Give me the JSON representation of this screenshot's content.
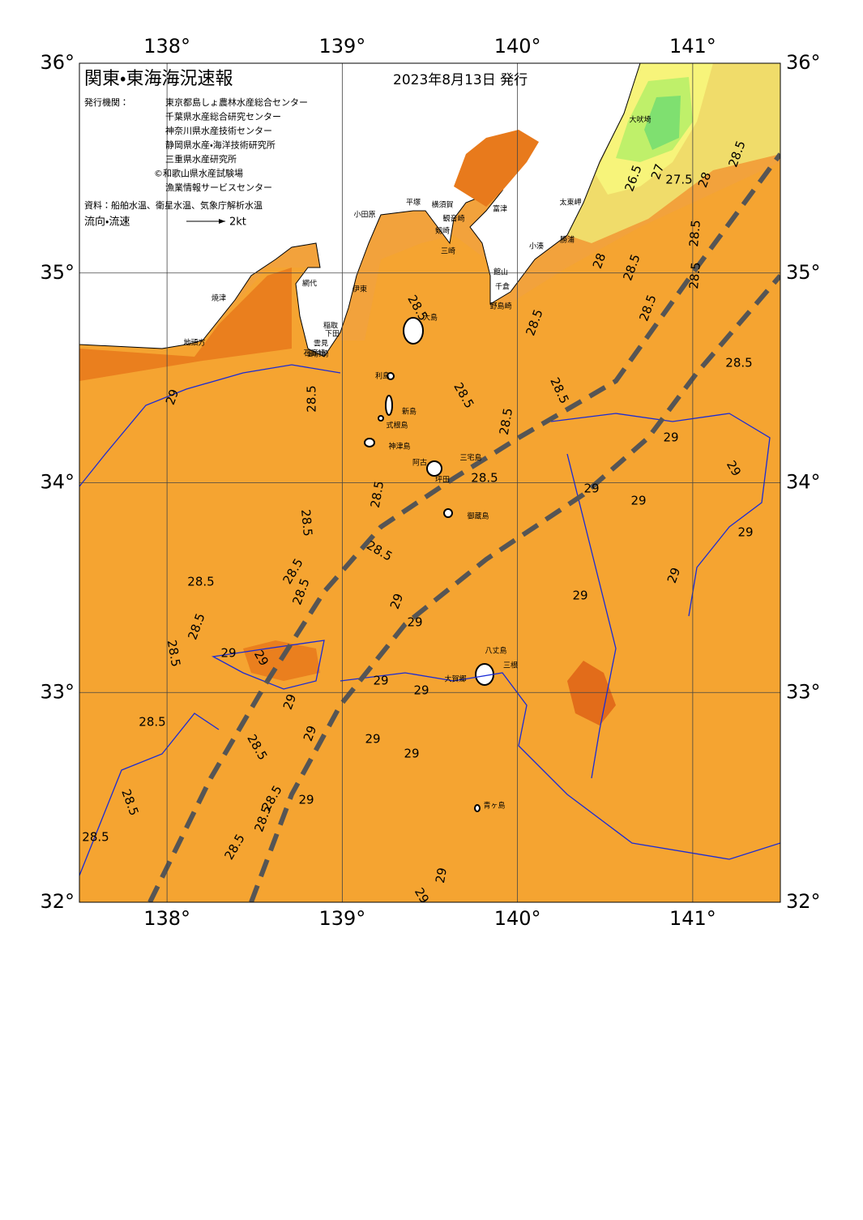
{
  "map": {
    "title": "関東・東海海況速報",
    "issued": "2023年8月13日 発行",
    "publisher_label": "発行機関：",
    "publishers": [
      "東京都島しょ農林水産総合センター",
      "千葉県水産総合研究センター",
      "神奈川県水産技術センター",
      "静岡県水産・海洋技術研究所",
      "三重県水産研究所",
      "©和歌山県水産試験場",
      "漁業情報サービスセンター"
    ],
    "source": "資料：船舶水温、衛星水温、気象庁解析水温",
    "legend": {
      "label": "流向・流速",
      "scale": "2kt"
    },
    "lon_range": [
      137.5,
      141.5
    ],
    "lat_range": [
      32,
      36
    ],
    "lon_ticks": [
      {
        "value": 138,
        "label": "138°"
      },
      {
        "value": 139,
        "label": "139°"
      },
      {
        "value": 140,
        "label": "140°"
      },
      {
        "value": 141,
        "label": "141°"
      }
    ],
    "lat_ticks": [
      {
        "value": 32,
        "label": "32°"
      },
      {
        "value": 33,
        "label": "33°"
      },
      {
        "value": 34,
        "label": "34°"
      },
      {
        "value": 35,
        "label": "35°"
      },
      {
        "value": 36,
        "label": "36°"
      }
    ],
    "places": [
      "大吠埼",
      "太東岬",
      "勝浦",
      "小湊",
      "館山",
      "千倉",
      "野島崎",
      "富津",
      "横須賀",
      "観音崎",
      "剱崎",
      "三崎",
      "平塚",
      "小田原",
      "伊東",
      "網代",
      "稲取",
      "下田",
      "石廊崎",
      "雲見",
      "御前崎",
      "焼津",
      "地頭方",
      "大島",
      "利島",
      "新島",
      "式根島",
      "神津島",
      "三宅島",
      "阿古",
      "坪田",
      "御蔵島",
      "八丈島",
      "三根",
      "大賀郷",
      "青ヶ島"
    ],
    "contour_labels": [
      26.5,
      27,
      27.5,
      28,
      28.5,
      28.5,
      28.5,
      28.5,
      28,
      28.5,
      28.5,
      28.5,
      28.5,
      28.5,
      28.5,
      28.5,
      28.5,
      28.5,
      28.5,
      28.5,
      28.5,
      28.5,
      28.5,
      28.5,
      28.5,
      28.5,
      28.5,
      28.5,
      28.5,
      28.5,
      28.5,
      28.5,
      28.5,
      29,
      29,
      29,
      29,
      29,
      29,
      29,
      29,
      29,
      29,
      29,
      29,
      29,
      29,
      29,
      29,
      29,
      29,
      29,
      29,
      29
    ]
  }
}
